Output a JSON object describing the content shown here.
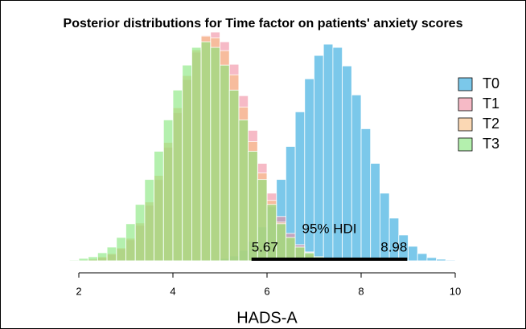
{
  "chart_data": {
    "type": "histogram",
    "title": "Posterior distributions for Time factor on patients' anxiety scores",
    "xlabel": "HADS-A",
    "xlim": [
      1.8,
      10.4
    ],
    "xticks": [
      2,
      4,
      6,
      8,
      10
    ],
    "legend": "top-right",
    "bins": [
      1.8,
      2.0,
      2.2,
      2.4,
      2.6,
      2.8,
      3.0,
      3.2,
      3.4,
      3.6,
      3.8,
      4.0,
      4.2,
      4.4,
      4.6,
      4.8,
      5.0,
      5.2,
      5.4,
      5.6,
      5.8,
      6.0,
      6.2,
      6.4,
      6.6,
      6.8,
      7.0,
      7.2,
      7.4,
      7.6,
      7.8,
      8.0,
      8.2,
      8.4,
      8.6,
      8.8,
      9.0,
      9.2,
      9.4,
      9.6,
      9.8,
      10.0,
      10.2,
      10.4
    ],
    "series": [
      {
        "name": "T0",
        "color": "rgba(100,190,230,0.85)",
        "values": [
          0,
          0,
          0,
          0,
          0,
          0,
          0,
          0,
          0,
          0,
          0,
          0,
          0,
          0,
          1,
          1,
          3,
          6,
          13,
          24,
          42,
          67,
          101,
          142,
          185,
          226,
          255,
          269,
          265,
          242,
          206,
          164,
          121,
          84,
          53,
          32,
          18,
          9,
          4,
          2,
          1,
          0,
          0
        ]
      },
      {
        "name": "T1",
        "color": "rgba(240,140,160,0.6)",
        "values": [
          0,
          1,
          2,
          4,
          8,
          15,
          26,
          44,
          69,
          101,
          141,
          184,
          225,
          259,
          280,
          284,
          272,
          244,
          205,
          162,
          121,
          84,
          55,
          34,
          20,
          11,
          5,
          3,
          1,
          1,
          0,
          0,
          0,
          0,
          0,
          0,
          0,
          0,
          0,
          0,
          0,
          0,
          0
        ]
      },
      {
        "name": "T2",
        "color": "rgba(248,190,130,0.6)",
        "values": [
          0,
          1,
          2,
          5,
          9,
          16,
          28,
          47,
          73,
          106,
          147,
          190,
          230,
          262,
          279,
          277,
          261,
          231,
          191,
          148,
          109,
          75,
          48,
          29,
          17,
          9,
          4,
          2,
          1,
          0,
          0,
          0,
          0,
          0,
          0,
          0,
          0,
          0,
          0,
          0,
          0,
          0,
          0
        ]
      },
      {
        "name": "T3",
        "color": "rgba(130,230,120,0.6)",
        "values": [
          1,
          3,
          5,
          10,
          17,
          29,
          46,
          70,
          101,
          136,
          175,
          212,
          243,
          265,
          272,
          265,
          243,
          212,
          175,
          136,
          101,
          70,
          46,
          29,
          17,
          10,
          5,
          3,
          1,
          0,
          0,
          0,
          0,
          0,
          0,
          0,
          0,
          0,
          0,
          0,
          0,
          0,
          0
        ]
      }
    ],
    "hdi": {
      "label": "95% HDI",
      "low": 5.67,
      "high": 8.98
    }
  }
}
